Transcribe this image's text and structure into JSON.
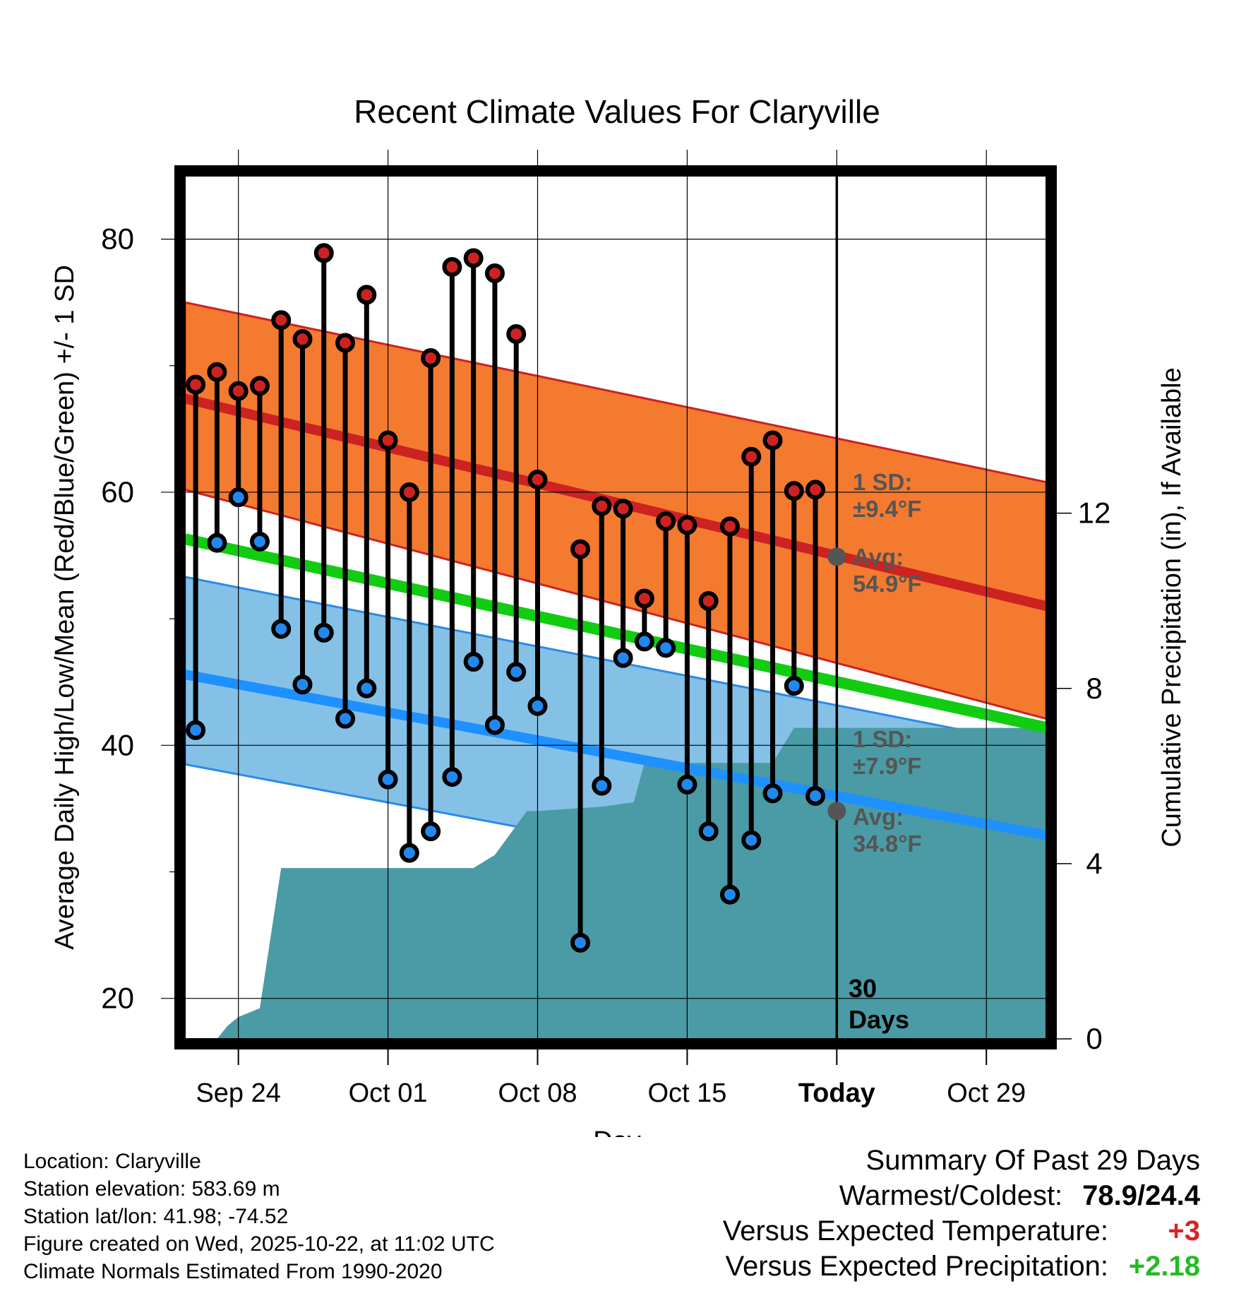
{
  "chart_data": {
    "type": "line",
    "title": "Recent Climate Values For Claryville",
    "xlabel": "Day",
    "ylabel": "Average Daily High/Low/Mean (Red/Blue/Green) +/- 1 SD",
    "y2label": "Cumulative Precipitation (in), If Available",
    "x_ticks": [
      "Sep 24",
      "Oct 01",
      "Oct 08",
      "Oct 15",
      "Today",
      "Oct 29"
    ],
    "x_tick_days": [
      2,
      9,
      16,
      23,
      30,
      37
    ],
    "xlim": [
      -0.5,
      39.8
    ],
    "ylim": [
      16.8,
      85
    ],
    "y_ticks": [
      20,
      40,
      60,
      80
    ],
    "y_minor_ticks": [
      30,
      50,
      70
    ],
    "y2lim": [
      0,
      19.7
    ],
    "y2_ticks": [
      0,
      4,
      8,
      12
    ],
    "today_day": 30,
    "days_label": "30\nDays",
    "normals": {
      "high_mean": [
        67.4,
        51.0
      ],
      "high_sd_upper": [
        75.0,
        60.8
      ],
      "high_sd_lower": [
        60.2,
        42.1
      ],
      "mean": [
        56.3,
        41.4
      ],
      "low_mean": [
        45.6,
        32.9
      ],
      "low_sd_upper": [
        53.3,
        39.9
      ],
      "low_sd_lower": [
        38.5,
        25.7
      ]
    },
    "normal_labels": {
      "high_sd": "1 SD:\n±9.4°F",
      "high_avg": "Avg:\n54.9°F",
      "high_avg_value": 54.9,
      "low_sd": "1 SD:\n±7.9°F",
      "low_avg": "Avg:\n34.8°F",
      "low_avg_value": 34.8
    },
    "series": [
      {
        "name": "Daily High",
        "color": "#cc2222",
        "values": [
          68.5,
          69.5,
          68,
          68.4,
          73.6,
          72.1,
          78.9,
          71.8,
          75.6,
          64.1,
          60,
          70.6,
          77.8,
          78.5,
          77.3,
          72.5,
          61,
          null,
          55.5,
          58.9,
          58.7,
          51.6,
          57.7,
          57.4,
          51.4,
          57.3,
          62.8,
          64.1,
          60.1,
          60.2
        ]
      },
      {
        "name": "Daily Low",
        "color": "#2288ee",
        "values": [
          41.2,
          56,
          59.6,
          56.1,
          49.2,
          44.8,
          48.9,
          42.1,
          44.5,
          37.3,
          31.5,
          33.2,
          37.5,
          46.6,
          41.6,
          45.8,
          43.1,
          null,
          24.4,
          36.8,
          46.9,
          48.2,
          47.7,
          36.9,
          33.2,
          28.2,
          32.5,
          36.2,
          44.7,
          36
        ]
      },
      {
        "name": "Cumulative Precipitation",
        "color": "#4a9ba5",
        "days": [
          1,
          1.5,
          2,
          3,
          4,
          5,
          11,
          12,
          13,
          14,
          15.5,
          16,
          19,
          20.5,
          21,
          22,
          23,
          25,
          26,
          27,
          28,
          28.5,
          29,
          30,
          40
        ],
        "values": [
          0,
          0.3,
          0.5,
          0.7,
          3.9,
          3.9,
          3.9,
          3.9,
          3.9,
          4.2,
          5.2,
          5.2,
          5.3,
          5.4,
          6.3,
          6.3,
          6.3,
          6.3,
          6.3,
          6.3,
          7.1,
          7.1,
          7.1,
          7.1,
          7.1
        ]
      }
    ]
  },
  "info": {
    "location": "Location: Claryville",
    "elevation": "Station elevation: 583.69 m",
    "latlon": "Station lat/lon: 41.98; -74.52",
    "created": "Figure created on Wed, 2025-10-22, at 11:02 UTC",
    "normals": "Climate Normals Estimated From 1990-2020"
  },
  "summary": {
    "title": "Summary Of Past 29 Days",
    "warmest_label": "Warmest/Coldest:",
    "warmest_value": "78.9/24.4",
    "temp_label": "Versus Expected Temperature:",
    "temp_value": "+3",
    "temp_color": "#dd2222",
    "precip_label": "Versus Expected Precipitation:",
    "precip_value": "+2.18",
    "precip_color": "#22bb22"
  }
}
